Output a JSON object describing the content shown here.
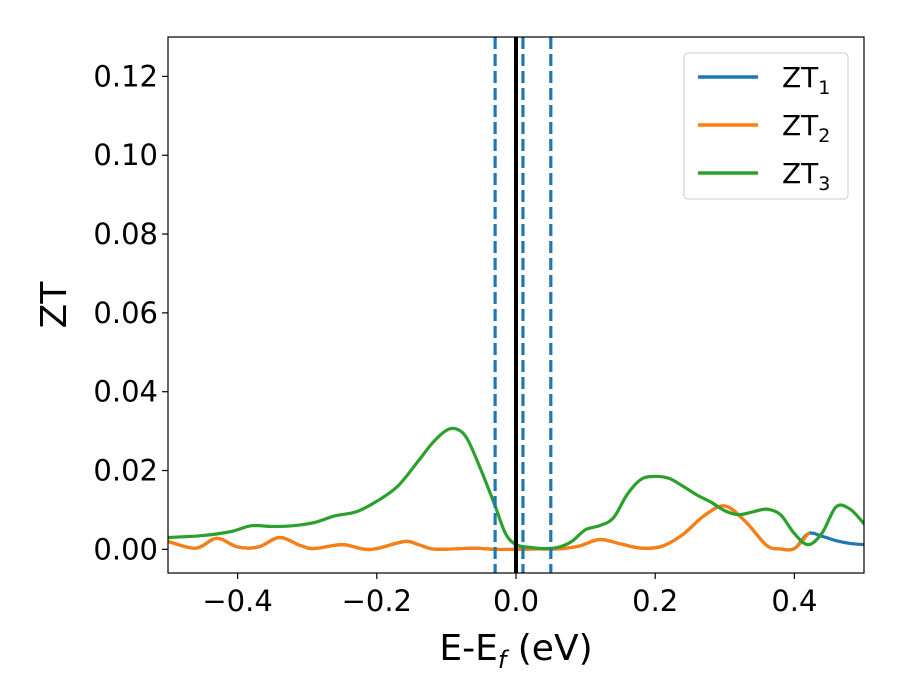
{
  "chart_data": {
    "type": "line",
    "xlabel": "E-E",
    "xlabel_sub": "f",
    "xlabel_unit": " (eV)",
    "ylabel": "ZT",
    "xlim": [
      -0.5,
      0.5
    ],
    "ylim": [
      -0.006,
      0.13
    ],
    "xticks": [
      -0.4,
      -0.2,
      0.0,
      0.2,
      0.4
    ],
    "xtick_labels": [
      "−0.4",
      "−0.2",
      "0.0",
      "0.2",
      "0.4"
    ],
    "yticks": [
      0.0,
      0.02,
      0.04,
      0.06,
      0.08,
      0.1,
      0.12
    ],
    "ytick_labels": [
      "0.00",
      "0.02",
      "0.04",
      "0.06",
      "0.08",
      "0.10",
      "0.12"
    ],
    "grid": false,
    "legend_position": "top-right",
    "series": [
      {
        "name": "ZT",
        "sub": "1",
        "color": "#1f77b4",
        "x": [
          -0.5,
          -0.46,
          -0.43,
          -0.4,
          -0.37,
          -0.34,
          -0.31,
          -0.29,
          -0.25,
          -0.22,
          -0.2,
          -0.16,
          -0.14,
          -0.12,
          -0.09,
          -0.06,
          -0.03,
          0.0,
          0.03,
          0.06,
          0.09,
          0.12,
          0.15,
          0.18,
          0.21,
          0.24,
          0.27,
          0.3,
          0.33,
          0.36,
          0.38,
          0.4,
          0.42,
          0.44,
          0.46,
          0.48,
          0.5
        ],
        "y": [
          0.002,
          0.0003,
          0.0028,
          0.0006,
          0.0006,
          0.003,
          0.001,
          0.0002,
          0.0012,
          0.0001,
          0.0002,
          0.002,
          0.0012,
          0.0001,
          0.0001,
          0.0003,
          0.0,
          0.0,
          0.0001,
          0.0001,
          0.0008,
          0.0025,
          0.0014,
          0.0003,
          0.0008,
          0.0038,
          0.0085,
          0.011,
          0.007,
          0.001,
          0.0001,
          0.0002,
          0.004,
          0.0033,
          0.0022,
          0.0015,
          0.0012
        ]
      },
      {
        "name": "ZT",
        "sub": "2",
        "color": "#ff7f0e",
        "x": [
          -0.5,
          -0.46,
          -0.43,
          -0.4,
          -0.37,
          -0.34,
          -0.31,
          -0.29,
          -0.25,
          -0.22,
          -0.2,
          -0.16,
          -0.14,
          -0.12,
          -0.09,
          -0.06,
          -0.03,
          0.0,
          0.03,
          0.06,
          0.09,
          0.12,
          0.15,
          0.18,
          0.21,
          0.24,
          0.27,
          0.3,
          0.33,
          0.36,
          0.38,
          0.4,
          0.42
        ],
        "y": [
          0.002,
          0.0003,
          0.0028,
          0.0006,
          0.0006,
          0.003,
          0.001,
          0.0002,
          0.0012,
          0.0001,
          0.0002,
          0.002,
          0.0012,
          0.0001,
          0.0001,
          0.0003,
          0.0,
          0.0,
          0.0001,
          0.0001,
          0.0008,
          0.0025,
          0.0014,
          0.0003,
          0.0008,
          0.0038,
          0.0085,
          0.011,
          0.007,
          0.001,
          0.0001,
          0.0002,
          0.004
        ]
      },
      {
        "name": "ZT",
        "sub": "3",
        "color": "#2ca02c",
        "x": [
          -0.5,
          -0.45,
          -0.41,
          -0.38,
          -0.35,
          -0.32,
          -0.29,
          -0.26,
          -0.23,
          -0.2,
          -0.17,
          -0.14,
          -0.12,
          -0.1,
          -0.085,
          -0.07,
          -0.05,
          -0.03,
          -0.015,
          0.0,
          0.02,
          0.04,
          0.06,
          0.08,
          0.1,
          0.12,
          0.14,
          0.16,
          0.18,
          0.2,
          0.22,
          0.24,
          0.26,
          0.28,
          0.3,
          0.32,
          0.34,
          0.36,
          0.38,
          0.4,
          0.42,
          0.44,
          0.46,
          0.48,
          0.5
        ],
        "y": [
          0.003,
          0.0035,
          0.0045,
          0.006,
          0.0058,
          0.006,
          0.0068,
          0.0085,
          0.0095,
          0.0122,
          0.016,
          0.0225,
          0.027,
          0.0302,
          0.0305,
          0.028,
          0.02,
          0.011,
          0.004,
          0.0012,
          0.0005,
          0.0002,
          0.0005,
          0.002,
          0.005,
          0.006,
          0.008,
          0.014,
          0.0178,
          0.0185,
          0.018,
          0.016,
          0.0138,
          0.012,
          0.0098,
          0.0088,
          0.0095,
          0.0102,
          0.0088,
          0.004,
          0.0012,
          0.0042,
          0.0108,
          0.0102,
          0.0065
        ]
      }
    ],
    "vlines": [
      {
        "x": 0.0,
        "style": "solid",
        "color": "#000000"
      },
      {
        "x": -0.03,
        "style": "dashed",
        "color": "#1f77b4"
      },
      {
        "x": 0.01,
        "style": "dashed",
        "color": "#1f77b4"
      },
      {
        "x": 0.05,
        "style": "dashed",
        "color": "#1f77b4"
      }
    ]
  }
}
